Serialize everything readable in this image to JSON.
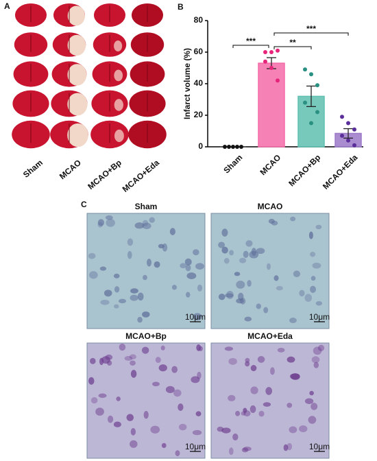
{
  "panel_a": {
    "label": "A",
    "groups": [
      "Sham",
      "MCAO",
      "MCAO+Bp",
      "MCAO+Eda"
    ]
  },
  "panel_b": {
    "label": "B"
  },
  "panel_c": {
    "label": "C",
    "images": [
      {
        "title": "Sham",
        "scale": "10μm"
      },
      {
        "title": "MCAO",
        "scale": "10μm"
      },
      {
        "title": "MCAO+Bp",
        "scale": "10μm"
      },
      {
        "title": "MCAO+Eda",
        "scale": "10μm"
      }
    ]
  },
  "chart_data": {
    "type": "bar",
    "y_label": "Infarct volume (%)",
    "categories": [
      "Sham",
      "MCAO",
      "MCAO+Bp",
      "MCAO+Eda"
    ],
    "values": [
      0,
      53,
      32,
      8.5
    ],
    "errors": [
      0,
      3.5,
      6.5,
      3
    ],
    "colors": [
      "#222222",
      "#f46ba8",
      "#5fbfb0",
      "#9b79c9"
    ],
    "point_colors": [
      "#111111",
      "#e6247a",
      "#2a9082",
      "#5b2f9a"
    ],
    "points": [
      [
        0,
        0,
        0,
        0,
        0
      ],
      [
        60,
        60,
        61,
        54,
        50,
        42
      ],
      [
        49,
        46,
        39,
        28,
        15,
        22
      ],
      [
        19,
        15,
        11,
        7,
        4,
        1
      ]
    ],
    "significance": [
      "***",
      "**",
      "***"
    ],
    "ylim": [
      0,
      80
    ],
    "yticks": [
      0,
      20,
      40,
      60,
      80
    ]
  }
}
